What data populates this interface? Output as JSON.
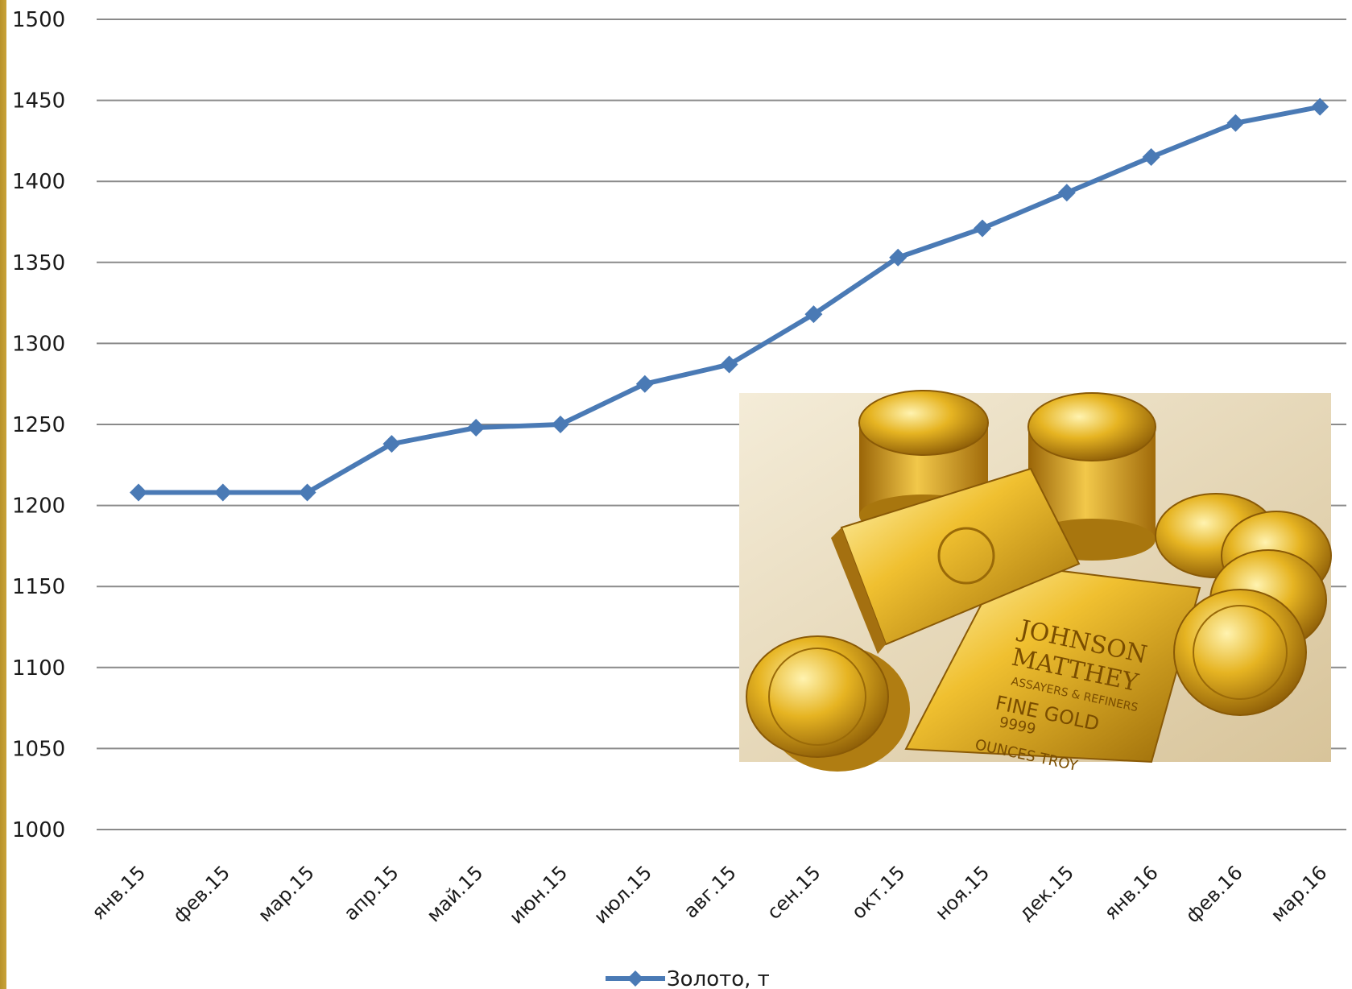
{
  "chart_data": {
    "type": "line",
    "categories": [
      "янв.15",
      "фев.15",
      "мар.15",
      "апр.15",
      "май.15",
      "июн.15",
      "июл.15",
      "авг.15",
      "сен.15",
      "окт.15",
      "ноя.15",
      "дек.15",
      "янв.16",
      "фев.16",
      "мар.16"
    ],
    "series": [
      {
        "name": "Золото, т",
        "values": [
          1208,
          1208,
          1208,
          1238,
          1248,
          1250,
          1275,
          1287,
          1318,
          1353,
          1371,
          1393,
          1415,
          1436,
          1446
        ],
        "color": "#4a7ab5",
        "marker": "diamond"
      }
    ],
    "yticks": [
      1000,
      1050,
      1100,
      1150,
      1200,
      1250,
      1300,
      1350,
      1400,
      1450,
      1500
    ],
    "ylim": [
      1000,
      1500
    ],
    "grid": true,
    "legend_position": "bottom-center",
    "title": "",
    "xlabel": "",
    "ylabel": ""
  },
  "inset_photo": {
    "subject": "gold bullion bars and coins",
    "bar_text": [
      "JOHNSON",
      "MATTHEY",
      "ASSAYERS & REFINERS",
      "FINE GOLD",
      "9999",
      "OUNCES TROY"
    ]
  },
  "colors": {
    "gridline": "#8a8a8a",
    "accent_stripe": "#c9a33a"
  }
}
